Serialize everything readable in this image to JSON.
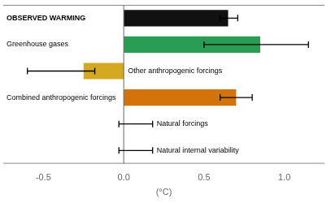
{
  "chart_data": {
    "type": "bar",
    "orientation": "horizontal",
    "xlabel": "(°C)",
    "categories": [
      "OBSERVED WARMING",
      "Greenhouse gases",
      "Other anthropogenic forcings",
      "Combined anthropogenic forcings",
      "Natural forcings",
      "Natural internal variability"
    ],
    "values": [
      0.65,
      0.85,
      -0.25,
      0.7,
      0.0,
      0.0
    ],
    "error_center": [
      0.65,
      0.85,
      -0.25,
      0.7,
      0.04,
      0.04
    ],
    "error_minus": [
      0.05,
      0.35,
      0.35,
      0.1,
      0.07,
      0.07
    ],
    "error_plus": [
      0.06,
      0.3,
      0.07,
      0.1,
      0.14,
      0.14
    ],
    "colors": [
      "#111111",
      "#2a9d54",
      "#d4a820",
      "#d4730a",
      null,
      null
    ],
    "xlim": [
      -0.75,
      1.25
    ],
    "xticks": [
      -0.5,
      {
        "value": 0.0,
        "label": "0.0"
      },
      0.5,
      {
        "value": 1.0,
        "label": "1.0"
      }
    ],
    "grid": false,
    "tick_labels": "x"
  }
}
